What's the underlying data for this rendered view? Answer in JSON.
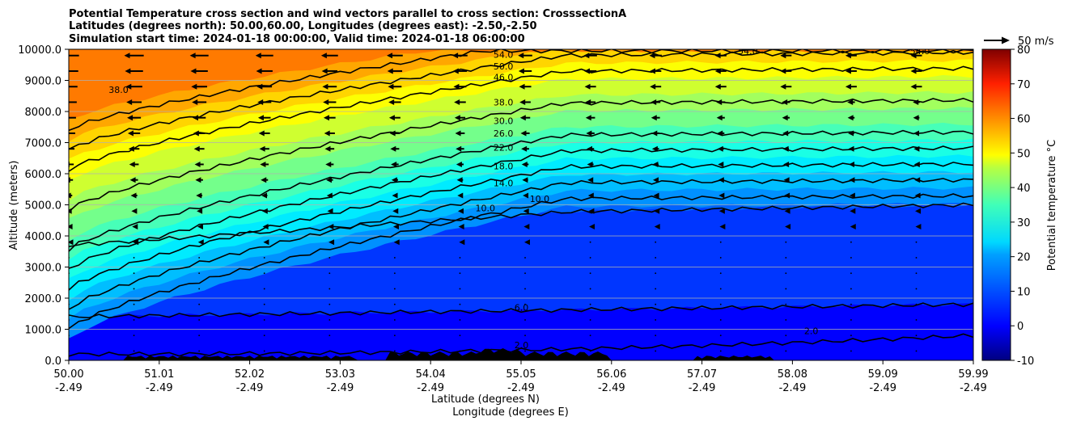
{
  "chart_data": {
    "type": "contour",
    "title_lines": [
      "Potential Temperature cross section and wind vectors parallel to cross section: CrosssectionA",
      "Latitudes (degrees north): 50.00,60.00, Longitudes (degrees east): -2.50,-2.50",
      "Simulation start time: 2024-01-18 00:00:00, Valid time: 2024-01-18 06:00:00"
    ],
    "ylabel": "Altitude (meters)",
    "xlabel_lines": [
      "Latitude (degrees N)",
      "Longitude (degrees E)"
    ],
    "ylim": [
      0,
      10000
    ],
    "y_ticks": [
      "0.0",
      "1000.0",
      "2000.0",
      "3000.0",
      "4000.0",
      "5000.0",
      "6000.0",
      "7000.0",
      "8000.0",
      "9000.0",
      "10000.0"
    ],
    "y_tick_values": [
      0,
      1000,
      2000,
      3000,
      4000,
      5000,
      6000,
      7000,
      8000,
      9000,
      10000
    ],
    "x_ticks": [
      {
        "lat": "50.00",
        "lon": "-2.49"
      },
      {
        "lat": "51.01",
        "lon": "-2.49"
      },
      {
        "lat": "52.02",
        "lon": "-2.49"
      },
      {
        "lat": "53.03",
        "lon": "-2.49"
      },
      {
        "lat": "54.04",
        "lon": "-2.49"
      },
      {
        "lat": "55.05",
        "lon": "-2.49"
      },
      {
        "lat": "56.06",
        "lon": "-2.49"
      },
      {
        "lat": "57.07",
        "lon": "-2.49"
      },
      {
        "lat": "58.08",
        "lon": "-2.49"
      },
      {
        "lat": "59.09",
        "lon": "-2.49"
      },
      {
        "lat": "59.99",
        "lon": "-2.49"
      }
    ],
    "grid": "horizontal",
    "colorbar": {
      "label": "Potential temperature $^\\circ$C",
      "range": [
        -10,
        80
      ],
      "ticks": [
        "-10",
        "0",
        "10",
        "20",
        "30",
        "40",
        "50",
        "60",
        "70",
        "80"
      ],
      "tick_values": [
        -10,
        0,
        10,
        20,
        30,
        40,
        50,
        60,
        70,
        80
      ],
      "colormap": "jet"
    },
    "quiver_key": "50 m/s",
    "contour_levels": [
      2,
      6,
      10,
      14,
      18,
      22,
      26,
      30,
      38,
      46,
      50,
      54
    ],
    "contour_labels": [
      {
        "text": "54.0",
        "lat": 54.8,
        "alt": 9830
      },
      {
        "text": "50.0",
        "lat": 54.8,
        "alt": 9450
      },
      {
        "text": "46.0",
        "lat": 54.8,
        "alt": 9100
      },
      {
        "text": "38.0",
        "lat": 54.8,
        "alt": 8300
      },
      {
        "text": "30.0",
        "lat": 54.8,
        "alt": 7700
      },
      {
        "text": "26.0",
        "lat": 54.8,
        "alt": 7300
      },
      {
        "text": "22.0",
        "lat": 54.8,
        "alt": 6850
      },
      {
        "text": "18.0",
        "lat": 54.8,
        "alt": 6250
      },
      {
        "text": "14.0",
        "lat": 54.8,
        "alt": 5700
      },
      {
        "text": "10.0",
        "lat": 55.2,
        "alt": 5200
      },
      {
        "text": "10.0",
        "lat": 54.6,
        "alt": 4900
      },
      {
        "text": "6.0",
        "lat": 55.0,
        "alt": 1700
      },
      {
        "text": "2.0",
        "lat": 55.0,
        "alt": 500
      },
      {
        "text": "2.0",
        "lat": 58.2,
        "alt": 950
      },
      {
        "text": "38.0",
        "lat": 50.55,
        "alt": 8700
      },
      {
        "text": "54.0",
        "lat": 57.5,
        "alt": 9950
      },
      {
        "text": "54.0",
        "lat": 59.4,
        "alt": 9950
      }
    ]
  }
}
